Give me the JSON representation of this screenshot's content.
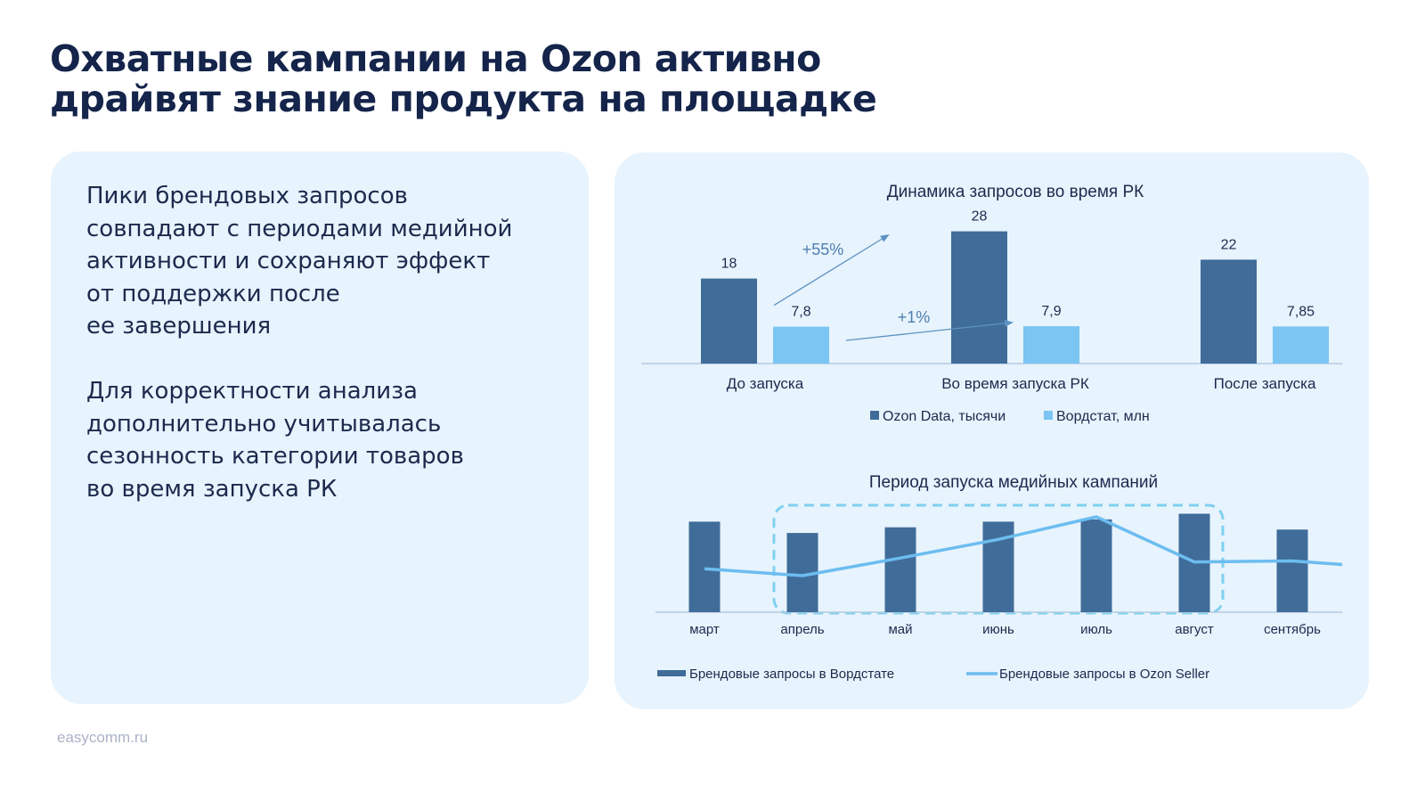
{
  "slide": {
    "title_lines": [
      "Охватные кампании на Ozon активно",
      "драйвят знание продукта на площадке"
    ],
    "paragraph1_lines": [
      "Пики брендовых запросов",
      "совпадают с периодами медийной",
      "активности и сохраняют эффект",
      "от поддержки после",
      "ее завершения"
    ],
    "paragraph2_lines": [
      "Для корректности анализа",
      "дополнительно учитывалась",
      "сезонность категории товаров",
      "во время запуска РК"
    ],
    "footer": "easycomm.ru"
  },
  "colors": {
    "dark_bar": "#406c99",
    "light_bar": "#7ac5f2",
    "line": "#6cbdf0",
    "highlight_box": "#7fd0ef",
    "card_bg": "#e7f3fd",
    "title": "#14244a"
  },
  "chart_data": [
    {
      "type": "bar",
      "title": "Динамика запросов во время РК",
      "categories": [
        "До запуска",
        "Во время запуска РК",
        "После запуска"
      ],
      "series": [
        {
          "name": "Ozon Data, тысячи",
          "values": [
            18,
            28,
            22
          ],
          "labels": [
            "18",
            "28",
            "22"
          ],
          "color": "#406c99"
        },
        {
          "name": "Вордстат, млн",
          "values": [
            7.8,
            7.9,
            7.85
          ],
          "labels": [
            "7,8",
            "7,9",
            "7,85"
          ],
          "color": "#7ac5f2"
        }
      ],
      "annotations": [
        "+55%",
        "+1%"
      ],
      "legend_position": "bottom",
      "grid": false
    },
    {
      "type": "bar",
      "title": "Период запуска медийных кампаний",
      "categories": [
        "март",
        "апрель",
        "май",
        "июнь",
        "июль",
        "август",
        "сентябрь"
      ],
      "series": [
        {
          "name": "Брендовые запросы в Вордстате",
          "type": "bar",
          "values": [
            80,
            70,
            75,
            80,
            82,
            87,
            73
          ],
          "color": "#406c99"
        },
        {
          "name": "Брендовые запросы в Ozon Seller",
          "type": "line",
          "values": [
            37,
            30,
            48,
            67,
            90,
            44,
            45
          ],
          "color": "#6cbdf0"
        }
      ],
      "highlight_period": [
        "апрель",
        "август"
      ],
      "legend_position": "bottom",
      "grid": false
    }
  ]
}
